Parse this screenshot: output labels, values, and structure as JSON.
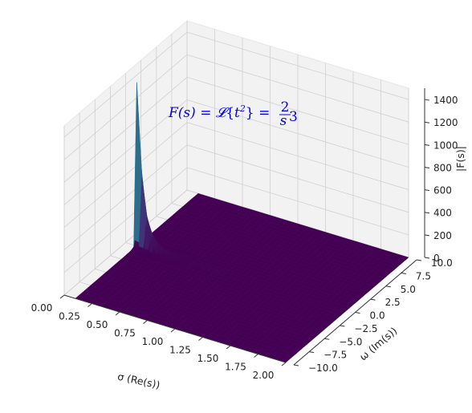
{
  "chart_data": {
    "type": "surface3d",
    "title": "",
    "annotation": {
      "lhs": "F(s)",
      "transform": "𝓛",
      "arg": "t",
      "arg_power": "2",
      "numerator": "2",
      "denominator": "s",
      "denominator_power": "3",
      "color": "#0000ff"
    },
    "xlabel": "σ (Re(s))",
    "ylabel": "ω (Im(s))",
    "zlabel": "|F(s)|",
    "xlim": [
      0.0,
      2.0
    ],
    "ylim": [
      -10.0,
      10.0
    ],
    "zlim": [
      0,
      1500
    ],
    "x_ticks": [
      "0.00",
      "0.25",
      "0.50",
      "0.75",
      "1.00",
      "1.25",
      "1.50",
      "1.75",
      "2.00"
    ],
    "y_ticks": [
      "−10.0",
      "−7.5",
      "−5.0",
      "−2.5",
      "0.0",
      "2.5",
      "5.0",
      "7.5",
      "10.0"
    ],
    "z_ticks": [
      "0",
      "200",
      "400",
      "600",
      "800",
      "1000",
      "1200",
      "1400"
    ],
    "function": "|F(s)| = 2/|s|^3, s = σ + iω",
    "peak": {
      "sigma": 0.1,
      "omega": 0.0,
      "value": 1450
    },
    "colormap": [
      "#440154",
      "#3b528b",
      "#21918c",
      "#5ec962",
      "#fde725"
    ],
    "pane_color": "#f2f2f2",
    "grid": true
  }
}
